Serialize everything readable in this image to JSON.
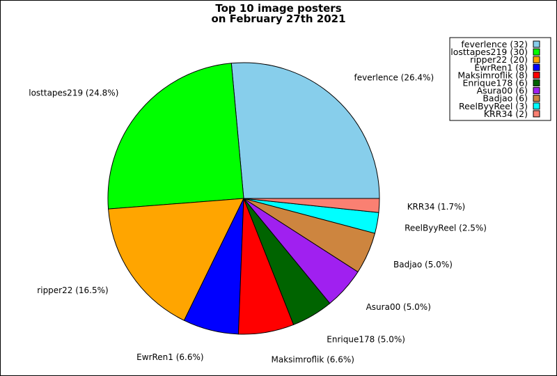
{
  "chart_data": {
    "type": "pie",
    "title": "Top 10 image posters",
    "subtitle": "on February 27th 2021",
    "legend_position": "top-right",
    "start_angle_deg": 0,
    "direction": "counterclockwise",
    "slices": [
      {
        "name": "feverlence",
        "value": 32,
        "percent_label": "26.4%",
        "color": "#87CEEB"
      },
      {
        "name": "losttapes219",
        "value": 30,
        "percent_label": "24.8%",
        "color": "#00FF00"
      },
      {
        "name": "ripper22",
        "value": 20,
        "percent_label": "16.5%",
        "color": "#FFA500"
      },
      {
        "name": "EwrRen1",
        "value": 8,
        "percent_label": "6.6%",
        "color": "#0000FF"
      },
      {
        "name": "Maksimroflik",
        "value": 8,
        "percent_label": "6.6%",
        "color": "#FF0000"
      },
      {
        "name": "Enrique178",
        "value": 6,
        "percent_label": "5.0%",
        "color": "#006400"
      },
      {
        "name": "Asura00",
        "value": 6,
        "percent_label": "5.0%",
        "color": "#A020F0"
      },
      {
        "name": "Badjao",
        "value": 6,
        "percent_label": "5.0%",
        "color": "#CD853F"
      },
      {
        "name": "ReelByyReel",
        "value": 3,
        "percent_label": "2.5%",
        "color": "#00FFFF"
      },
      {
        "name": "KRR34",
        "value": 2,
        "percent_label": "1.7%",
        "color": "#FA8072"
      }
    ]
  }
}
